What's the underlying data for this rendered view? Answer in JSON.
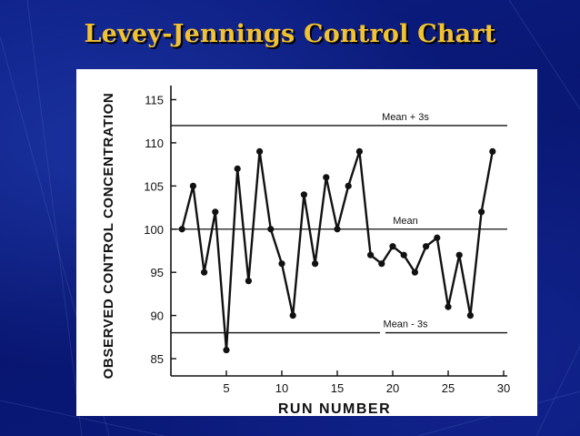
{
  "slide": {
    "title": "Levey-Jennings Control Chart",
    "title_color": "#f2c230",
    "background_color": "#0b1a78"
  },
  "chart_data": {
    "type": "line",
    "xlabel": "RUN NUMBER",
    "ylabel": "OBSERVED CONTROL CONCENTRATION",
    "xlim": [
      0,
      30
    ],
    "ylim": [
      83,
      116
    ],
    "x_ticks": [
      5,
      10,
      15,
      20,
      25,
      30
    ],
    "y_ticks": [
      85,
      90,
      95,
      100,
      105,
      110,
      115
    ],
    "grid": false,
    "reference_lines": [
      {
        "label": "Mean + 3s",
        "value": 112
      },
      {
        "label": "Mean",
        "value": 100
      },
      {
        "label": "Mean - 3s",
        "value": 88
      }
    ],
    "series": [
      {
        "x": [
          1,
          2,
          3,
          4,
          5,
          6,
          7,
          8,
          9,
          10,
          11,
          12,
          13,
          14,
          15,
          16,
          17,
          18,
          19,
          20,
          21,
          22,
          23,
          24,
          25,
          26,
          27,
          28,
          29
        ],
        "values": [
          100,
          105,
          95,
          102,
          86,
          107,
          94,
          109,
          100,
          96,
          90,
          104,
          96,
          106,
          100,
          105,
          109,
          97,
          96,
          98,
          97,
          95,
          98,
          99,
          91,
          97,
          90,
          102,
          109
        ]
      }
    ]
  }
}
